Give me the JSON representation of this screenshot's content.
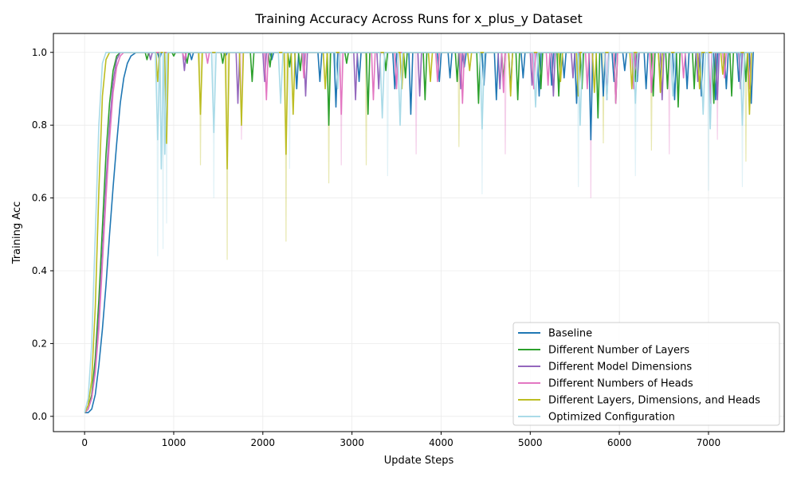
{
  "chart_data": {
    "type": "line",
    "title": "Training Accuracy Across Runs for x_plus_y Dataset",
    "xlabel": "Update Steps",
    "ylabel": "Training Acc",
    "xlim": [
      -350,
      7850
    ],
    "ylim": [
      -0.042,
      1.052
    ],
    "x_ticks": [
      0,
      1000,
      2000,
      3000,
      4000,
      5000,
      6000,
      7000
    ],
    "x_tick_labels": [
      "0",
      "1000",
      "2000",
      "3000",
      "4000",
      "5000",
      "6000",
      "7000"
    ],
    "y_ticks": [
      0.0,
      0.2,
      0.4,
      0.6,
      0.8,
      1.0
    ],
    "y_tick_labels": [
      "0.0",
      "0.2",
      "0.4",
      "0.6",
      "0.8",
      "1.0"
    ],
    "grid": true,
    "legend_position": "lower-right",
    "x_max_step": 7500,
    "series": [
      {
        "name": "Baseline",
        "color": "#1f77b4",
        "rise": [
          [
            0,
            0.01
          ],
          [
            40,
            0.01
          ],
          [
            80,
            0.02
          ],
          [
            120,
            0.06
          ],
          [
            160,
            0.14
          ],
          [
            200,
            0.24
          ],
          [
            240,
            0.36
          ],
          [
            280,
            0.5
          ],
          [
            320,
            0.63
          ],
          [
            360,
            0.75
          ],
          [
            400,
            0.86
          ],
          [
            440,
            0.93
          ],
          [
            480,
            0.97
          ],
          [
            520,
            0.99
          ],
          [
            580,
            1.0
          ]
        ],
        "dips": [
          [
            840,
            0.98
          ],
          [
            1200,
            0.98
          ],
          [
            1580,
            0.99
          ],
          [
            2100,
            0.98
          ],
          [
            2380,
            0.9
          ],
          [
            2640,
            0.92
          ],
          [
            2820,
            0.85
          ],
          [
            3080,
            0.92
          ],
          [
            3480,
            0.9
          ],
          [
            3660,
            0.83
          ],
          [
            3980,
            0.92
          ],
          [
            4100,
            0.93
          ],
          [
            4260,
            0.96
          ],
          [
            4480,
            0.91
          ],
          [
            4620,
            0.87
          ],
          [
            4780,
            0.9
          ],
          [
            4920,
            0.93
          ],
          [
            5100,
            0.88
          ],
          [
            5240,
            0.91
          ],
          [
            5380,
            0.93
          ],
          [
            5520,
            0.86
          ],
          [
            5680,
            0.76
          ],
          [
            5820,
            0.88
          ],
          [
            5940,
            0.92
          ],
          [
            6060,
            0.95
          ],
          [
            6200,
            0.92
          ],
          [
            6300,
            0.9
          ],
          [
            6460,
            0.92
          ],
          [
            6620,
            0.87
          ],
          [
            6760,
            0.9
          ],
          [
            6920,
            0.88
          ],
          [
            7080,
            0.87
          ],
          [
            7200,
            0.9
          ],
          [
            7340,
            0.92
          ],
          [
            7480,
            0.86
          ]
        ],
        "dip_width": 22,
        "opacity": 1.0
      },
      {
        "name": "Different Number of Layers",
        "color": "#2ca02c",
        "rise": [
          [
            0,
            0.01
          ],
          [
            40,
            0.02
          ],
          [
            80,
            0.06
          ],
          [
            120,
            0.16
          ],
          [
            160,
            0.32
          ],
          [
            200,
            0.52
          ],
          [
            240,
            0.72
          ],
          [
            280,
            0.86
          ],
          [
            320,
            0.95
          ],
          [
            360,
            0.99
          ],
          [
            400,
            1.0
          ]
        ],
        "dips": [
          [
            700,
            0.98
          ],
          [
            1000,
            0.99
          ],
          [
            1150,
            0.97
          ],
          [
            1550,
            0.97
          ],
          [
            1880,
            0.92
          ],
          [
            2080,
            0.96
          ],
          [
            2300,
            0.96
          ],
          [
            2420,
            0.95
          ],
          [
            2740,
            0.8
          ],
          [
            2940,
            0.97
          ],
          [
            3180,
            0.83
          ],
          [
            3380,
            0.95
          ],
          [
            3600,
            0.93
          ],
          [
            3820,
            0.87
          ],
          [
            4180,
            0.92
          ],
          [
            4420,
            0.86
          ],
          [
            4700,
            0.92
          ],
          [
            4860,
            0.87
          ],
          [
            5120,
            0.9
          ],
          [
            5320,
            0.88
          ],
          [
            5580,
            0.9
          ],
          [
            5760,
            0.82
          ],
          [
            5960,
            0.86
          ],
          [
            6180,
            0.92
          ],
          [
            6380,
            0.88
          ],
          [
            6540,
            0.9
          ],
          [
            6660,
            0.85
          ],
          [
            6840,
            0.9
          ],
          [
            7060,
            0.86
          ],
          [
            7260,
            0.88
          ],
          [
            7420,
            0.92
          ]
        ],
        "dip_width": 20,
        "opacity": 1.0
      },
      {
        "name": "Different Model Dimensions",
        "color": "#9467bd",
        "rise": [
          [
            0,
            0.01
          ],
          [
            40,
            0.02
          ],
          [
            80,
            0.05
          ],
          [
            120,
            0.13
          ],
          [
            160,
            0.27
          ],
          [
            200,
            0.45
          ],
          [
            240,
            0.64
          ],
          [
            280,
            0.8
          ],
          [
            320,
            0.92
          ],
          [
            360,
            0.98
          ],
          [
            400,
            1.0
          ]
        ],
        "dips": [
          [
            740,
            0.98
          ],
          [
            1120,
            0.95
          ],
          [
            1720,
            0.86
          ],
          [
            2020,
            0.92
          ],
          [
            2480,
            0.88
          ],
          [
            3040,
            0.87
          ],
          [
            3300,
            0.9
          ],
          [
            3760,
            0.88
          ],
          [
            4220,
            0.9
          ],
          [
            4660,
            0.9
          ],
          [
            5020,
            0.91
          ],
          [
            5260,
            0.88
          ],
          [
            5480,
            0.93
          ],
          [
            5860,
            0.87
          ],
          [
            6200,
            0.94
          ],
          [
            6480,
            0.87
          ],
          [
            6880,
            0.92
          ],
          [
            7100,
            0.87
          ],
          [
            7360,
            0.9
          ]
        ],
        "dip_width": 20,
        "opacity": 1.0
      },
      {
        "name": "Different Numbers of Heads",
        "color": "#e377c2",
        "rise": [
          [
            0,
            0.01
          ],
          [
            40,
            0.02
          ],
          [
            80,
            0.05
          ],
          [
            120,
            0.12
          ],
          [
            160,
            0.24
          ],
          [
            200,
            0.42
          ],
          [
            240,
            0.6
          ],
          [
            280,
            0.76
          ],
          [
            320,
            0.89
          ],
          [
            360,
            0.96
          ],
          [
            400,
            0.99
          ],
          [
            440,
            1.0
          ]
        ],
        "dips": [
          [
            1120,
            0.98
          ],
          [
            1380,
            0.97
          ],
          [
            2040,
            0.87
          ],
          [
            2460,
            0.93
          ],
          [
            2880,
            0.83
          ],
          [
            3240,
            0.87
          ],
          [
            3500,
            0.9
          ],
          [
            3960,
            0.92
          ],
          [
            4240,
            0.86
          ],
          [
            4700,
            0.89
          ],
          [
            5040,
            0.9
          ],
          [
            5200,
            0.91
          ],
          [
            5640,
            0.9
          ],
          [
            5960,
            0.86
          ],
          [
            6160,
            0.9
          ],
          [
            6360,
            0.89
          ],
          [
            6720,
            0.93
          ],
          [
            7020,
            0.86
          ],
          [
            7180,
            0.93
          ],
          [
            7460,
            0.9
          ]
        ],
        "dip_width": 20,
        "opacity": 1.0
      },
      {
        "name": "Different Layers, Dimensions, and Heads",
        "color": "#bcbd22",
        "rise": [
          [
            0,
            0.01
          ],
          [
            40,
            0.03
          ],
          [
            80,
            0.1
          ],
          [
            120,
            0.3
          ],
          [
            160,
            0.62
          ],
          [
            200,
            0.88
          ],
          [
            240,
            0.98
          ],
          [
            280,
            1.0
          ]
        ],
        "dips": [
          [
            820,
            0.92
          ],
          [
            920,
            0.75
          ],
          [
            1300,
            0.83
          ],
          [
            1600,
            0.68
          ],
          [
            1760,
            0.8
          ],
          [
            2260,
            0.72
          ],
          [
            2340,
            0.83
          ],
          [
            2700,
            0.9
          ],
          [
            3560,
            0.9
          ],
          [
            3880,
            0.92
          ],
          [
            4320,
            0.95
          ],
          [
            4780,
            0.88
          ],
          [
            5340,
            0.92
          ],
          [
            5540,
            0.88
          ],
          [
            5720,
            0.89
          ],
          [
            6140,
            0.9
          ],
          [
            6460,
            0.89
          ],
          [
            6900,
            0.9
          ],
          [
            7160,
            0.94
          ],
          [
            7460,
            0.83
          ]
        ],
        "dip_width": 22,
        "opacity": 1.0
      },
      {
        "name": "Optimized Configuration",
        "color": "#aadbe8",
        "rise": [
          [
            0,
            0.01
          ],
          [
            40,
            0.05
          ],
          [
            80,
            0.2
          ],
          [
            120,
            0.5
          ],
          [
            160,
            0.8
          ],
          [
            200,
            0.97
          ],
          [
            240,
            1.0
          ]
        ],
        "dips": [
          [
            820,
            0.76
          ],
          [
            860,
            0.68
          ],
          [
            900,
            0.72
          ],
          [
            1450,
            0.78
          ],
          [
            2200,
            0.86
          ],
          [
            2840,
            0.9
          ],
          [
            3340,
            0.82
          ],
          [
            3540,
            0.8
          ],
          [
            4460,
            0.79
          ],
          [
            5060,
            0.85
          ],
          [
            5560,
            0.8
          ],
          [
            5860,
            0.87
          ],
          [
            6180,
            0.86
          ],
          [
            6600,
            0.88
          ],
          [
            6940,
            0.83
          ],
          [
            7020,
            0.79
          ],
          [
            7380,
            0.8
          ]
        ],
        "dip_width": 26,
        "opacity": 1.0
      }
    ],
    "faint_noise": [
      {
        "series": "Different Layers, Dimensions, and Heads",
        "color": "#bcbd22",
        "points": [
          [
            1600,
            0.43
          ],
          [
            2260,
            0.48
          ],
          [
            1300,
            0.69
          ],
          [
            2740,
            0.64
          ],
          [
            3160,
            0.69
          ],
          [
            4200,
            0.74
          ],
          [
            5820,
            0.75
          ],
          [
            6360,
            0.73
          ],
          [
            7420,
            0.7
          ]
        ]
      },
      {
        "series": "Optimized Configuration",
        "color": "#aadbe8",
        "points": [
          [
            820,
            0.44
          ],
          [
            880,
            0.46
          ],
          [
            920,
            0.53
          ],
          [
            1450,
            0.6
          ],
          [
            2300,
            0.68
          ],
          [
            3400,
            0.66
          ],
          [
            4460,
            0.61
          ],
          [
            5540,
            0.63
          ],
          [
            6180,
            0.66
          ],
          [
            7000,
            0.62
          ],
          [
            7380,
            0.63
          ]
        ]
      },
      {
        "series": "Different Numbers of Heads",
        "color": "#e377c2",
        "points": [
          [
            1760,
            0.76
          ],
          [
            2880,
            0.69
          ],
          [
            3720,
            0.72
          ],
          [
            4720,
            0.72
          ],
          [
            5680,
            0.6
          ],
          [
            6560,
            0.72
          ],
          [
            7100,
            0.76
          ]
        ]
      }
    ]
  }
}
